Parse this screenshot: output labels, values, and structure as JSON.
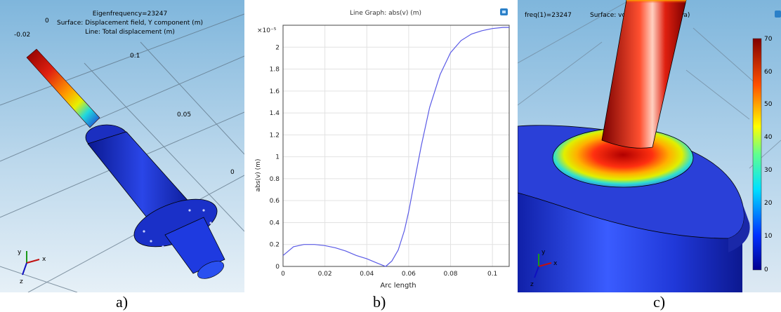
{
  "panel_a": {
    "title_lines": [
      "Eigenfrequency=23247",
      "Surface: Displacement field, Y component (m)",
      "Line: Total displacement (m)"
    ],
    "axis_labels": [
      "-0.02",
      "0",
      "0.1",
      "0.05",
      "0"
    ],
    "triad": {
      "y": "y",
      "x": "x",
      "z": "z"
    },
    "caption": "a)"
  },
  "panel_b": {
    "header_title": "Line Graph: abs(v) (m)",
    "caption": "b)"
  },
  "panel_c": {
    "title_left": "freq(1)=23247",
    "title_right": "Surface: von Mises stress (MPa)",
    "colorbar_ticks": [
      "70",
      "60",
      "50",
      "40",
      "30",
      "20",
      "10",
      "0"
    ],
    "triad": {
      "y": "y",
      "x": "x",
      "z": "z"
    },
    "caption": "c)"
  },
  "chart_data": {
    "type": "line",
    "title": "Line Graph: abs(v) (m)",
    "xlabel": "Arc length",
    "ylabel": "abs(v) (m)",
    "y_multiplier": "×10⁻⁵",
    "xlim": [
      0,
      0.108
    ],
    "ylim": [
      0,
      2.2
    ],
    "xticks": [
      "0",
      "0.02",
      "0.04",
      "0.06",
      "0.08",
      "0.1"
    ],
    "yticks": [
      "0",
      "0.2",
      "0.4",
      "0.6",
      "0.8",
      "1",
      "1.2",
      "1.4",
      "1.6",
      "1.8",
      "2"
    ],
    "grid": true,
    "series": [
      {
        "color": "#5a5ae6",
        "x": [
          0,
          0.005,
          0.01,
          0.015,
          0.02,
          0.025,
          0.03,
          0.035,
          0.04,
          0.045,
          0.049,
          0.052,
          0.055,
          0.058,
          0.06,
          0.063,
          0.066,
          0.07,
          0.075,
          0.08,
          0.085,
          0.09,
          0.095,
          0.1,
          0.105,
          0.108
        ],
        "y": [
          0.1,
          0.18,
          0.2,
          0.2,
          0.19,
          0.17,
          0.14,
          0.1,
          0.07,
          0.03,
          0,
          0.05,
          0.15,
          0.33,
          0.5,
          0.8,
          1.1,
          1.45,
          1.75,
          1.95,
          2.06,
          2.12,
          2.15,
          2.17,
          2.18,
          2.18
        ]
      }
    ]
  }
}
